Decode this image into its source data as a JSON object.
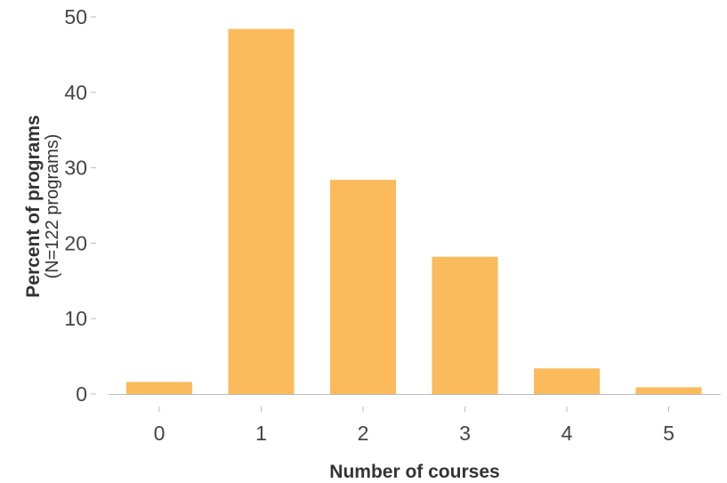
{
  "chart_data": {
    "type": "bar",
    "categories": [
      "0",
      "1",
      "2",
      "3",
      "4",
      "5"
    ],
    "values": [
      1.6,
      48.4,
      28.4,
      18.2,
      3.4,
      0.9
    ],
    "xlabel": "Number of courses",
    "ylabel": "Percent of programs",
    "ylabel_sub": "(N=122 programs)",
    "ylim": [
      0,
      50
    ],
    "yticks": [
      0,
      10,
      20,
      30,
      40,
      50
    ],
    "grid": false,
    "legend": "none",
    "bar_color": "#fbba5c",
    "axis_color": "#bbbbbb"
  }
}
